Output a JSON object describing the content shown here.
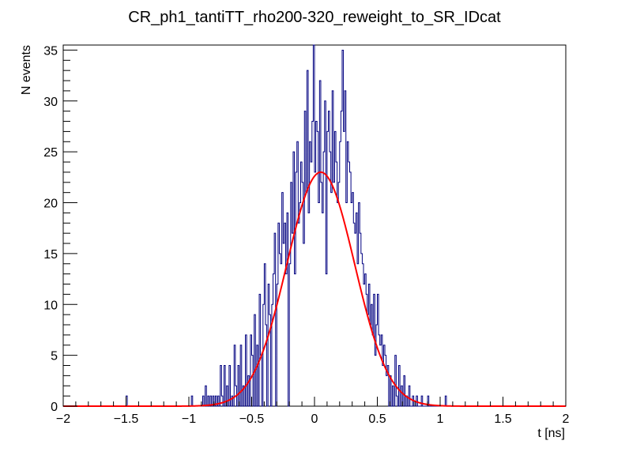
{
  "chart_data": {
    "type": "histogram",
    "title": "CR_ph1_tantiTT_rho200-320_reweight_to_SR_IDcat",
    "xlabel": "t [ns]",
    "ylabel": "N events",
    "xlim": [
      -2,
      2
    ],
    "ylim": [
      0,
      35.5
    ],
    "x_ticks": [
      -2,
      -1.5,
      -1,
      -0.5,
      0,
      0.5,
      1,
      1.5,
      2
    ],
    "x_tick_labels": [
      "−2",
      "−1.5",
      "−1",
      "−0.5",
      "0",
      "0.5",
      "1",
      "1.5",
      "2"
    ],
    "y_ticks": [
      0,
      5,
      10,
      15,
      20,
      25,
      30,
      35
    ],
    "y_tick_labels": [
      "0",
      "5",
      "10",
      "15",
      "20",
      "25",
      "30",
      "35"
    ],
    "grid": false,
    "legend": "none",
    "histogram": {
      "bin_low": -2.0,
      "bin_width": 0.01,
      "points": [
        [
          -1.5,
          1
        ],
        [
          -0.98,
          1
        ],
        [
          -0.89,
          1
        ],
        [
          -0.87,
          2
        ],
        [
          -0.85,
          1
        ],
        [
          -0.83,
          1
        ],
        [
          -0.81,
          1
        ],
        [
          -0.79,
          1
        ],
        [
          -0.77,
          1
        ],
        [
          -0.75,
          4
        ],
        [
          -0.74,
          1
        ],
        [
          -0.72,
          4
        ],
        [
          -0.7,
          2
        ],
        [
          -0.68,
          4
        ],
        [
          -0.66,
          1
        ],
        [
          -0.64,
          6
        ],
        [
          -0.63,
          2
        ],
        [
          -0.61,
          4
        ],
        [
          -0.59,
          6
        ],
        [
          -0.57,
          2
        ],
        [
          -0.55,
          7
        ],
        [
          -0.53,
          3
        ],
        [
          -0.51,
          7
        ],
        [
          -0.5,
          5
        ],
        [
          -0.48,
          9
        ],
        [
          -0.46,
          6
        ],
        [
          -0.44,
          11
        ],
        [
          -0.43,
          5
        ],
        [
          -0.41,
          10
        ],
        [
          -0.4,
          14
        ],
        [
          -0.39,
          8
        ],
        [
          -0.37,
          12
        ],
        [
          -0.36,
          9
        ],
        [
          -0.34,
          10
        ],
        [
          -0.33,
          13
        ],
        [
          -0.32,
          17
        ],
        [
          -0.3,
          12
        ],
        [
          -0.29,
          18
        ],
        [
          -0.28,
          15
        ],
        [
          -0.27,
          14
        ],
        [
          -0.26,
          21
        ],
        [
          -0.25,
          16
        ],
        [
          -0.24,
          18
        ],
        [
          -0.23,
          13
        ],
        [
          -0.22,
          19
        ],
        [
          -0.2,
          14
        ],
        [
          -0.19,
          22
        ],
        [
          -0.18,
          17
        ],
        [
          -0.17,
          25
        ],
        [
          -0.16,
          13
        ],
        [
          -0.15,
          23
        ],
        [
          -0.14,
          26
        ],
        [
          -0.13,
          18
        ],
        [
          -0.12,
          20
        ],
        [
          -0.11,
          24
        ],
        [
          -0.1,
          22
        ],
        [
          -0.09,
          16
        ],
        [
          -0.08,
          29
        ],
        [
          -0.07,
          21
        ],
        [
          -0.06,
          33
        ],
        [
          -0.05,
          19
        ],
        [
          -0.04,
          26
        ],
        [
          -0.03,
          24
        ],
        [
          -0.02,
          28
        ],
        [
          -0.01,
          36
        ],
        [
          0.0,
          23
        ],
        [
          0.01,
          28
        ],
        [
          0.02,
          27
        ],
        [
          0.03,
          20
        ],
        [
          0.04,
          32
        ],
        [
          0.05,
          22
        ],
        [
          0.06,
          19
        ],
        [
          0.07,
          25
        ],
        [
          0.08,
          30
        ],
        [
          0.09,
          13
        ],
        [
          0.1,
          27
        ],
        [
          0.11,
          29
        ],
        [
          0.12,
          25
        ],
        [
          0.13,
          21
        ],
        [
          0.14,
          31
        ],
        [
          0.15,
          22
        ],
        [
          0.16,
          27
        ],
        [
          0.17,
          24
        ],
        [
          0.18,
          20
        ],
        [
          0.19,
          22
        ],
        [
          0.2,
          26
        ],
        [
          0.21,
          29
        ],
        [
          0.22,
          35
        ],
        [
          0.23,
          27
        ],
        [
          0.24,
          31
        ],
        [
          0.25,
          20
        ],
        [
          0.26,
          26
        ],
        [
          0.27,
          24
        ],
        [
          0.28,
          23
        ],
        [
          0.29,
          20
        ],
        [
          0.3,
          21
        ],
        [
          0.31,
          18
        ],
        [
          0.32,
          17
        ],
        [
          0.33,
          19
        ],
        [
          0.34,
          14
        ],
        [
          0.35,
          20
        ],
        [
          0.36,
          17
        ],
        [
          0.37,
          15
        ],
        [
          0.38,
          14
        ],
        [
          0.39,
          12
        ],
        [
          0.4,
          13
        ],
        [
          0.41,
          11
        ],
        [
          0.42,
          9
        ],
        [
          0.43,
          12
        ],
        [
          0.44,
          8
        ],
        [
          0.45,
          10
        ],
        [
          0.46,
          7
        ],
        [
          0.47,
          11
        ],
        [
          0.48,
          5
        ],
        [
          0.49,
          8
        ],
        [
          0.5,
          11
        ],
        [
          0.51,
          7
        ],
        [
          0.52,
          6
        ],
        [
          0.53,
          7
        ],
        [
          0.54,
          4
        ],
        [
          0.55,
          6
        ],
        [
          0.56,
          5
        ],
        [
          0.57,
          3
        ],
        [
          0.58,
          4
        ],
        [
          0.6,
          3
        ],
        [
          0.62,
          2
        ],
        [
          0.64,
          5
        ],
        [
          0.65,
          1
        ],
        [
          0.67,
          4
        ],
        [
          0.69,
          2
        ],
        [
          0.71,
          3
        ],
        [
          0.73,
          1
        ],
        [
          0.75,
          2
        ],
        [
          0.78,
          1
        ],
        [
          0.81,
          1
        ],
        [
          0.85,
          1
        ],
        [
          0.9,
          1
        ],
        [
          1.04,
          1
        ]
      ]
    },
    "fit": {
      "type": "gaussian",
      "amplitude": 23,
      "mean": 0.05,
      "sigma": 0.27,
      "color": "#ff0000"
    },
    "colors": {
      "histogram_line": "#000080",
      "fit_line": "#ff0000",
      "axis": "#000000"
    }
  }
}
